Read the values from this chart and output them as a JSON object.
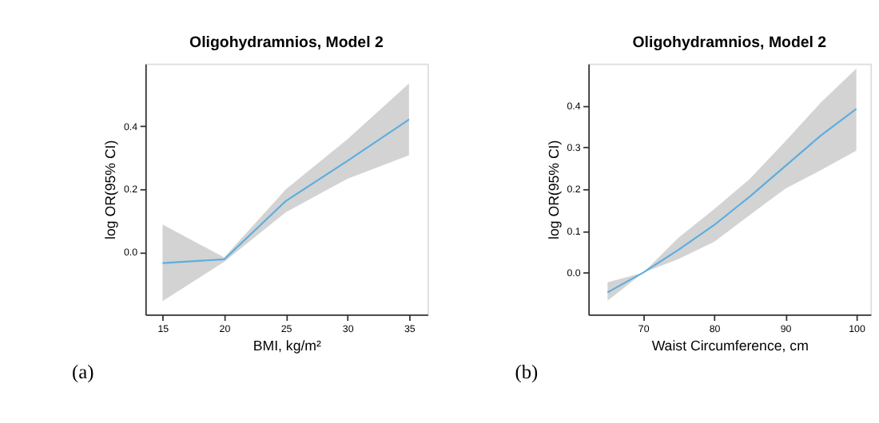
{
  "chart_data": [
    {
      "type": "line",
      "title": "Oligohydramnios, Model 2",
      "xlabel": "BMI, kg/m²",
      "ylabel": "log OR(95% CI)",
      "annotations": [
        "(a)"
      ],
      "x": [
        15,
        20,
        25,
        30,
        35
      ],
      "series": [
        {
          "color": "#5aaee0",
          "values": [
            -0.036,
            -0.024,
            0.162,
            0.29,
            0.422
          ],
          "lower": [
            -0.157,
            -0.032,
            0.126,
            0.233,
            0.308
          ],
          "upper": [
            0.087,
            -0.018,
            0.199,
            0.359,
            0.537
          ]
        }
      ],
      "xlim": [
        13.6,
        36.5
      ],
      "xticks": [
        15,
        20,
        25,
        30,
        35
      ],
      "ylim": [
        -0.2,
        0.6
      ],
      "yticks": [
        {
          "value": 0,
          "label": "0.0"
        },
        0.2,
        0.4
      ],
      "grid": false,
      "marker": "none",
      "line_style": "solid"
    },
    {
      "type": "line",
      "title": "Oligohydramnios, Model 2",
      "xlabel": "Waist Circumference,  cm",
      "ylabel": "log OR(95% CI)",
      "annotations": [
        "(b)"
      ],
      "x": [
        65,
        70,
        75,
        80,
        85,
        90,
        95,
        100
      ],
      "series": [
        {
          "color": "#5aaee0",
          "values": [
            -0.047,
            0,
            0.055,
            0.114,
            0.182,
            0.255,
            0.328,
            0.392
          ],
          "lower": [
            -0.067,
            0,
            0.033,
            0.074,
            0.138,
            0.201,
            0.245,
            0.292
          ],
          "upper": [
            -0.023,
            0,
            0.084,
            0.152,
            0.224,
            0.314,
            0.407,
            0.488
          ]
        }
      ],
      "xlim": [
        62.3,
        102
      ],
      "xticks": [
        70,
        80,
        90,
        100
      ],
      "ylim": [
        -0.1,
        0.5
      ],
      "yticks": [
        {
          "value": 0,
          "label": "0.0"
        },
        0.1,
        0.2,
        0.3,
        0.4
      ],
      "grid": false,
      "marker": "none",
      "line_style": "solid"
    }
  ]
}
